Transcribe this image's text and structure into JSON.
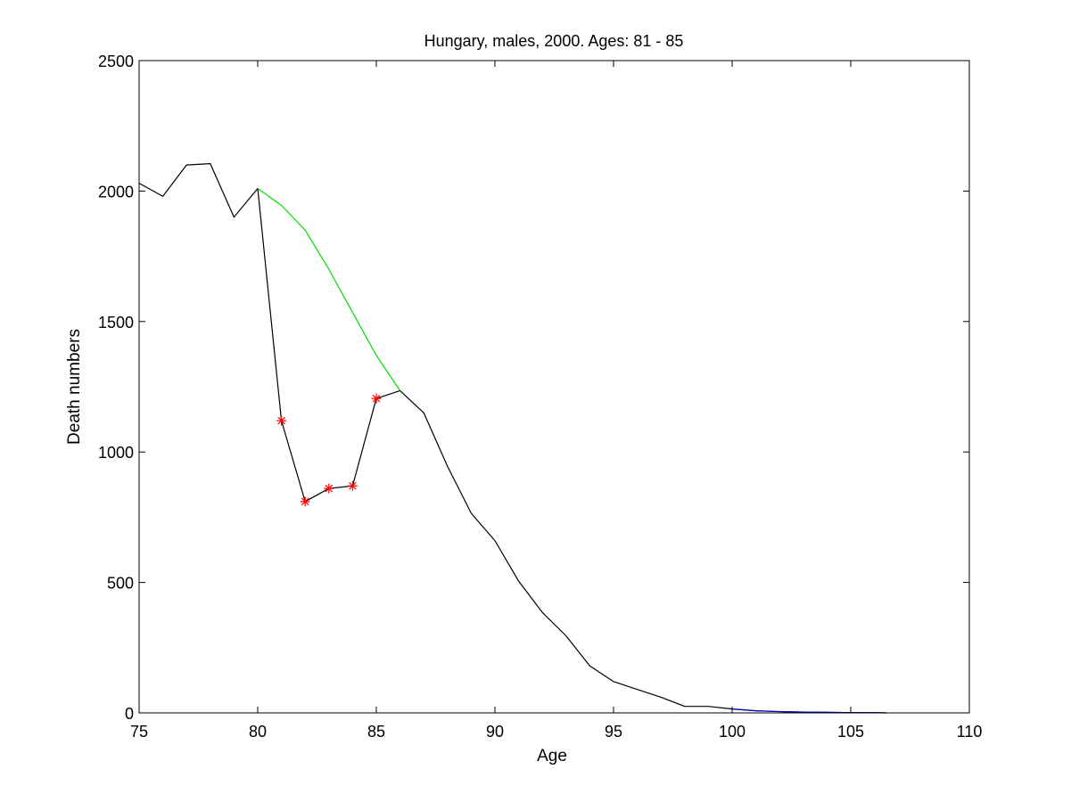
{
  "chart_data": {
    "type": "line",
    "title": "Hungary, males, 2000. Ages: 81 - 85",
    "xlabel": "Age",
    "ylabel": "Death numbers",
    "xlim": [
      75,
      110
    ],
    "ylim": [
      0,
      2500
    ],
    "xticks": [
      75,
      80,
      85,
      90,
      95,
      100,
      105,
      110
    ],
    "yticks": [
      0,
      500,
      1000,
      1500,
      2000,
      2500
    ],
    "grid": false,
    "legend": "none",
    "series": [
      {
        "color": "#000000",
        "style": "line",
        "x": [
          75,
          76,
          77,
          78,
          79,
          80,
          81,
          82,
          83,
          84,
          85,
          86,
          87,
          88,
          89,
          90,
          91,
          92,
          93,
          94,
          95,
          96,
          97,
          98,
          99,
          100,
          101,
          102,
          103,
          104,
          105,
          106,
          106.5
        ],
        "y": [
          2030,
          1980,
          2100,
          2105,
          1900,
          2010,
          1120,
          810,
          860,
          870,
          1205,
          1235,
          1150,
          945,
          765,
          660,
          505,
          385,
          295,
          180,
          120,
          90,
          60,
          25,
          25,
          15,
          8,
          5,
          3,
          2,
          1,
          1,
          0
        ]
      },
      {
        "color": "#00dd00",
        "style": "line",
        "x": [
          80,
          81,
          82,
          83,
          84,
          85,
          86
        ],
        "y": [
          2010,
          1945,
          1850,
          1700,
          1535,
          1370,
          1235
        ]
      },
      {
        "color": "#0000cc",
        "style": "line",
        "x": [
          100,
          101,
          102,
          103,
          104,
          105,
          106,
          106.5
        ],
        "y": [
          15,
          8,
          5,
          3,
          2,
          1,
          1,
          0
        ]
      },
      {
        "color": "#ff0000",
        "style": "markers-asterisk",
        "x": [
          81,
          82,
          83,
          84,
          85
        ],
        "y": [
          1120,
          810,
          860,
          870,
          1205
        ]
      }
    ]
  }
}
